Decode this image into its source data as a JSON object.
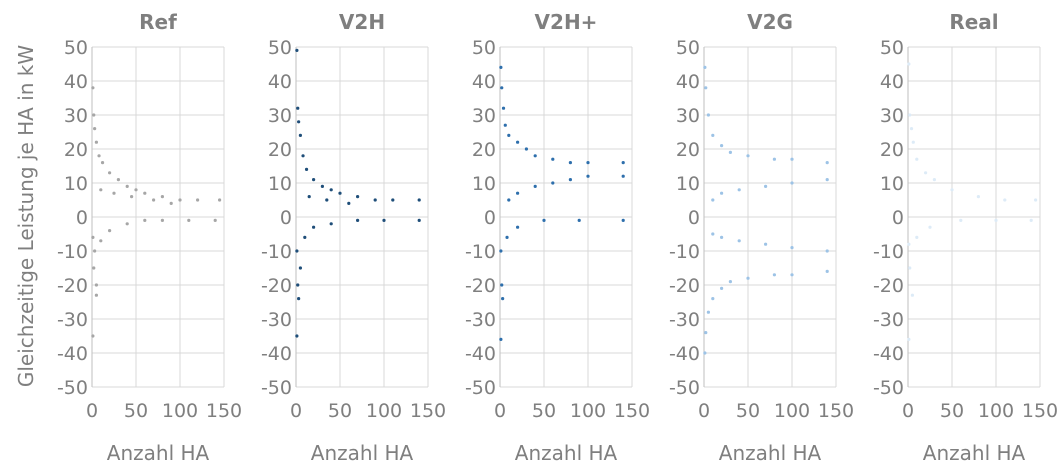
{
  "figure": {
    "ylabel": "Gleichzeitige Leistung je HA in kW",
    "xlabel": "Anzahl HA"
  },
  "chart_data": [
    {
      "type": "scatter",
      "title": "Ref",
      "xlabel": "Anzahl HA",
      "ylabel": "Gleichzeitige Leistung je HA in kW",
      "xlim": [
        0,
        150
      ],
      "ylim": [
        -50,
        50
      ],
      "xticks": [
        0,
        50,
        100,
        150
      ],
      "yticks": [
        -50,
        -40,
        -30,
        -20,
        -10,
        0,
        10,
        20,
        30,
        40,
        50
      ],
      "grid": true,
      "color": "#a6a6a6",
      "series": [
        {
          "values": [
            [
              1,
              38
            ],
            [
              2,
              30
            ],
            [
              3,
              26
            ],
            [
              5,
              22
            ],
            [
              8,
              18
            ],
            [
              12,
              16
            ],
            [
              20,
              13
            ],
            [
              30,
              11
            ],
            [
              40,
              9
            ],
            [
              50,
              8
            ],
            [
              60,
              7
            ],
            [
              80,
              6
            ],
            [
              100,
              5
            ],
            [
              120,
              5
            ],
            [
              145,
              5
            ],
            [
              10,
              8
            ],
            [
              25,
              7
            ],
            [
              45,
              6
            ],
            [
              70,
              5
            ],
            [
              90,
              4
            ],
            [
              1,
              -6
            ],
            [
              3,
              -10
            ],
            [
              2,
              -15
            ],
            [
              1,
              -35
            ],
            [
              5,
              -20
            ],
            [
              10,
              -7
            ],
            [
              20,
              -4
            ],
            [
              40,
              -2
            ],
            [
              60,
              -1
            ],
            [
              80,
              -1
            ],
            [
              110,
              -1
            ],
            [
              140,
              -1
            ],
            [
              5,
              -23
            ]
          ]
        }
      ]
    },
    {
      "type": "scatter",
      "title": "V2H",
      "xlabel": "Anzahl HA",
      "ylabel": "",
      "xlim": [
        0,
        150
      ],
      "ylim": [
        -50,
        50
      ],
      "xticks": [
        0,
        50,
        100,
        150
      ],
      "yticks": [
        -50,
        -40,
        -30,
        -20,
        -10,
        0,
        10,
        20,
        30,
        40,
        50
      ],
      "grid": true,
      "color": "#1f4e79",
      "series": [
        {
          "values": [
            [
              1,
              49
            ],
            [
              2,
              32
            ],
            [
              3,
              28
            ],
            [
              5,
              24
            ],
            [
              8,
              18
            ],
            [
              12,
              14
            ],
            [
              20,
              11
            ],
            [
              30,
              9
            ],
            [
              40,
              8
            ],
            [
              50,
              7
            ],
            [
              70,
              6
            ],
            [
              90,
              5
            ],
            [
              110,
              5
            ],
            [
              140,
              5
            ],
            [
              15,
              6
            ],
            [
              35,
              5
            ],
            [
              60,
              4
            ],
            [
              1,
              -10
            ],
            [
              2,
              -20
            ],
            [
              1,
              -35
            ],
            [
              3,
              -24
            ],
            [
              5,
              -15
            ],
            [
              10,
              -6
            ],
            [
              20,
              -3
            ],
            [
              40,
              -2
            ],
            [
              70,
              -1
            ],
            [
              100,
              -1
            ],
            [
              140,
              -1
            ]
          ]
        }
      ]
    },
    {
      "type": "scatter",
      "title": "V2H+",
      "xlabel": "Anzahl HA",
      "ylabel": "",
      "xlim": [
        0,
        150
      ],
      "ylim": [
        -50,
        50
      ],
      "xticks": [
        0,
        50,
        100,
        150
      ],
      "yticks": [
        -50,
        -40,
        -30,
        -20,
        -10,
        0,
        10,
        20,
        30,
        40,
        50
      ],
      "grid": true,
      "color": "#2e6fac",
      "series": [
        {
          "values": [
            [
              1,
              44
            ],
            [
              2,
              38
            ],
            [
              4,
              32
            ],
            [
              6,
              27
            ],
            [
              10,
              24
            ],
            [
              20,
              22
            ],
            [
              30,
              20
            ],
            [
              40,
              18
            ],
            [
              60,
              17
            ],
            [
              80,
              16
            ],
            [
              100,
              16
            ],
            [
              140,
              16
            ],
            [
              10,
              5
            ],
            [
              20,
              7
            ],
            [
              40,
              9
            ],
            [
              60,
              10
            ],
            [
              80,
              11
            ],
            [
              100,
              12
            ],
            [
              140,
              12
            ],
            [
              1,
              -10
            ],
            [
              2,
              -20
            ],
            [
              1,
              -36
            ],
            [
              3,
              -24
            ],
            [
              8,
              -6
            ],
            [
              20,
              -3
            ],
            [
              50,
              -1
            ],
            [
              90,
              -1
            ],
            [
              140,
              -1
            ]
          ]
        }
      ]
    },
    {
      "type": "scatter",
      "title": "V2G",
      "xlabel": "Anzahl HA",
      "ylabel": "",
      "xlim": [
        0,
        150
      ],
      "ylim": [
        -50,
        50
      ],
      "xticks": [
        0,
        50,
        100,
        150
      ],
      "yticks": [
        -50,
        -40,
        -30,
        -20,
        -10,
        0,
        10,
        20,
        30,
        40,
        50
      ],
      "grid": true,
      "color": "#9dc3e6",
      "series": [
        {
          "values": [
            [
              1,
              44
            ],
            [
              2,
              38
            ],
            [
              5,
              30
            ],
            [
              10,
              24
            ],
            [
              20,
              21
            ],
            [
              30,
              19
            ],
            [
              50,
              18
            ],
            [
              80,
              17
            ],
            [
              100,
              17
            ],
            [
              140,
              16
            ],
            [
              10,
              5
            ],
            [
              20,
              7
            ],
            [
              40,
              8
            ],
            [
              70,
              9
            ],
            [
              100,
              10
            ],
            [
              140,
              11
            ],
            [
              1,
              -40
            ],
            [
              2,
              -34
            ],
            [
              5,
              -28
            ],
            [
              10,
              -24
            ],
            [
              20,
              -21
            ],
            [
              30,
              -19
            ],
            [
              50,
              -18
            ],
            [
              80,
              -17
            ],
            [
              100,
              -17
            ],
            [
              140,
              -16
            ],
            [
              10,
              -5
            ],
            [
              20,
              -6
            ],
            [
              40,
              -7
            ],
            [
              70,
              -8
            ],
            [
              100,
              -9
            ],
            [
              140,
              -10
            ]
          ]
        }
      ]
    },
    {
      "type": "scatter",
      "title": "Real",
      "xlabel": "Anzahl HA",
      "ylabel": "",
      "xlim": [
        0,
        150
      ],
      "ylim": [
        -50,
        50
      ],
      "xticks": [
        0,
        50,
        100,
        150
      ],
      "yticks": [
        -50,
        -40,
        -30,
        -20,
        -10,
        0,
        10,
        20,
        30,
        40,
        50
      ],
      "grid": true,
      "color": "#ddebf7",
      "series": [
        {
          "values": [
            [
              1,
              45
            ],
            [
              2,
              30
            ],
            [
              4,
              26
            ],
            [
              6,
              22
            ],
            [
              10,
              17
            ],
            [
              20,
              13
            ],
            [
              30,
              11
            ],
            [
              50,
              8
            ],
            [
              80,
              6
            ],
            [
              110,
              5
            ],
            [
              145,
              5
            ],
            [
              1,
              -8
            ],
            [
              2,
              -15
            ],
            [
              1,
              -36
            ],
            [
              5,
              -23
            ],
            [
              10,
              -6
            ],
            [
              25,
              -3
            ],
            [
              60,
              -1
            ],
            [
              100,
              -1
            ],
            [
              140,
              -1
            ]
          ]
        }
      ]
    }
  ]
}
